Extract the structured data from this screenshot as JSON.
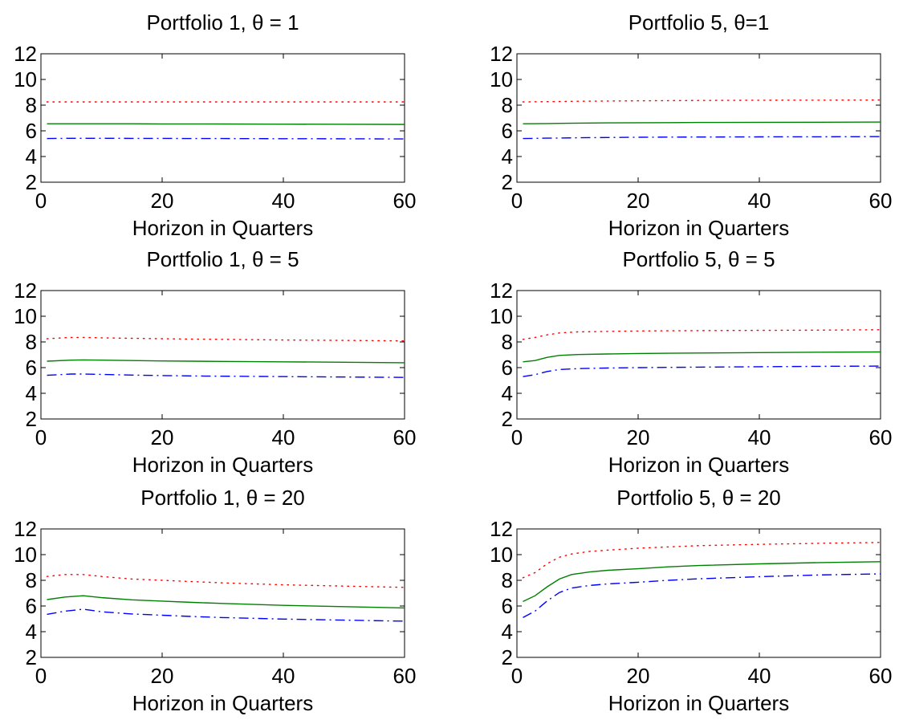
{
  "chart_data": [
    {
      "type": "line",
      "title": "Portfolio 1, θ = 1",
      "xlabel": "Horizon in Quarters",
      "ylabel": "",
      "xlim": [
        0,
        60
      ],
      "ylim": [
        2,
        12
      ],
      "xticks": [
        "0",
        "20",
        "40",
        "60"
      ],
      "yticks": [
        "2",
        "4",
        "6",
        "8",
        "10",
        "12"
      ],
      "grid": false,
      "x": [
        1,
        5,
        7,
        10,
        15,
        20,
        25,
        30,
        40,
        50,
        60
      ],
      "series": [
        {
          "style": "dotted",
          "color": "#ff0000",
          "values": [
            8.25,
            8.25,
            8.25,
            8.25,
            8.25,
            8.25,
            8.25,
            8.25,
            8.25,
            8.25,
            8.25
          ]
        },
        {
          "style": "solid",
          "color": "#008000",
          "values": [
            6.55,
            6.55,
            6.55,
            6.55,
            6.55,
            6.54,
            6.54,
            6.53,
            6.52,
            6.51,
            6.5
          ]
        },
        {
          "style": "dashdot",
          "color": "#0000ff",
          "values": [
            5.4,
            5.42,
            5.42,
            5.42,
            5.41,
            5.41,
            5.4,
            5.4,
            5.39,
            5.38,
            5.37
          ]
        }
      ]
    },
    {
      "type": "line",
      "title": "Portfolio 5, θ=1",
      "xlabel": "Horizon in Quarters",
      "ylabel": "",
      "xlim": [
        0,
        60
      ],
      "ylim": [
        2,
        12
      ],
      "xticks": [
        "0",
        "20",
        "40",
        "60"
      ],
      "yticks": [
        "2",
        "4",
        "6",
        "8",
        "10",
        "12"
      ],
      "grid": false,
      "x": [
        1,
        5,
        7,
        10,
        15,
        20,
        25,
        30,
        40,
        50,
        60
      ],
      "series": [
        {
          "style": "dotted",
          "color": "#ff0000",
          "values": [
            8.25,
            8.27,
            8.28,
            8.3,
            8.32,
            8.34,
            8.35,
            8.36,
            8.38,
            8.39,
            8.4
          ]
        },
        {
          "style": "solid",
          "color": "#008000",
          "values": [
            6.55,
            6.57,
            6.58,
            6.6,
            6.62,
            6.63,
            6.64,
            6.65,
            6.66,
            6.67,
            6.68
          ]
        },
        {
          "style": "dashdot",
          "color": "#0000ff",
          "values": [
            5.4,
            5.43,
            5.44,
            5.46,
            5.48,
            5.5,
            5.51,
            5.52,
            5.53,
            5.54,
            5.55
          ]
        }
      ]
    },
    {
      "type": "line",
      "title": "Portfolio 1, θ = 5",
      "xlabel": "Horizon in Quarters",
      "ylabel": "",
      "xlim": [
        0,
        60
      ],
      "ylim": [
        2,
        12
      ],
      "xticks": [
        "0",
        "20",
        "40",
        "60"
      ],
      "yticks": [
        "2",
        "4",
        "6",
        "8",
        "10",
        "12"
      ],
      "grid": false,
      "x": [
        1,
        5,
        7,
        10,
        15,
        20,
        25,
        30,
        40,
        50,
        60
      ],
      "series": [
        {
          "style": "dotted",
          "color": "#ff0000",
          "values": [
            8.25,
            8.35,
            8.35,
            8.32,
            8.28,
            8.25,
            8.22,
            8.2,
            8.15,
            8.12,
            8.08
          ]
        },
        {
          "style": "solid",
          "color": "#008000",
          "values": [
            6.5,
            6.58,
            6.6,
            6.58,
            6.55,
            6.52,
            6.5,
            6.48,
            6.45,
            6.42,
            6.38
          ]
        },
        {
          "style": "dashdot",
          "color": "#0000ff",
          "values": [
            5.4,
            5.5,
            5.5,
            5.47,
            5.42,
            5.38,
            5.35,
            5.33,
            5.3,
            5.27,
            5.24
          ]
        }
      ]
    },
    {
      "type": "line",
      "title": "Portfolio 5, θ = 5",
      "xlabel": "Horizon in Quarters",
      "ylabel": "",
      "xlim": [
        0,
        60
      ],
      "ylim": [
        2,
        12
      ],
      "xticks": [
        "0",
        "20",
        "40",
        "60"
      ],
      "yticks": [
        "2",
        "4",
        "6",
        "8",
        "10",
        "12"
      ],
      "grid": false,
      "x": [
        1,
        3,
        5,
        7,
        10,
        15,
        20,
        25,
        30,
        40,
        50,
        60
      ],
      "series": [
        {
          "style": "dotted",
          "color": "#ff0000",
          "values": [
            8.2,
            8.35,
            8.55,
            8.7,
            8.78,
            8.82,
            8.85,
            8.87,
            8.88,
            8.9,
            8.92,
            8.95
          ]
        },
        {
          "style": "solid",
          "color": "#008000",
          "values": [
            6.45,
            6.55,
            6.8,
            6.95,
            7.02,
            7.06,
            7.1,
            7.12,
            7.14,
            7.17,
            7.2,
            7.22
          ]
        },
        {
          "style": "dashdot",
          "color": "#0000ff",
          "values": [
            5.3,
            5.45,
            5.7,
            5.85,
            5.92,
            5.97,
            6.0,
            6.02,
            6.04,
            6.07,
            6.1,
            6.12
          ]
        }
      ]
    },
    {
      "type": "line",
      "title": "Portfolio 1, θ = 20",
      "xlabel": "Horizon in Quarters",
      "ylabel": "",
      "xlim": [
        0,
        60
      ],
      "ylim": [
        2,
        12
      ],
      "xticks": [
        "0",
        "20",
        "40",
        "60"
      ],
      "yticks": [
        "2",
        "4",
        "6",
        "8",
        "10",
        "12"
      ],
      "grid": false,
      "x": [
        1,
        4,
        7,
        10,
        15,
        20,
        25,
        30,
        40,
        50,
        60
      ],
      "series": [
        {
          "style": "dotted",
          "color": "#ff0000",
          "values": [
            8.3,
            8.45,
            8.45,
            8.3,
            8.1,
            8.0,
            7.9,
            7.8,
            7.65,
            7.55,
            7.45
          ]
        },
        {
          "style": "solid",
          "color": "#008000",
          "values": [
            6.5,
            6.7,
            6.8,
            6.65,
            6.48,
            6.38,
            6.28,
            6.2,
            6.05,
            5.95,
            5.85
          ]
        },
        {
          "style": "dashdot",
          "color": "#0000ff",
          "values": [
            5.35,
            5.6,
            5.75,
            5.55,
            5.38,
            5.28,
            5.18,
            5.1,
            4.98,
            4.9,
            4.82
          ]
        }
      ]
    },
    {
      "type": "line",
      "title": "Portfolio 5, θ = 20",
      "xlabel": "Horizon in Quarters",
      "ylabel": "",
      "xlim": [
        0,
        60
      ],
      "ylim": [
        2,
        12
      ],
      "xticks": [
        "0",
        "20",
        "40",
        "60"
      ],
      "yticks": [
        "2",
        "4",
        "6",
        "8",
        "10",
        "12"
      ],
      "grid": false,
      "x": [
        1,
        3,
        5,
        7,
        9,
        12,
        15,
        20,
        25,
        30,
        40,
        50,
        60
      ],
      "series": [
        {
          "style": "dotted",
          "color": "#ff0000",
          "values": [
            8.2,
            8.6,
            9.3,
            9.8,
            10.05,
            10.25,
            10.35,
            10.5,
            10.6,
            10.7,
            10.8,
            10.88,
            10.95
          ]
        },
        {
          "style": "solid",
          "color": "#008000",
          "values": [
            6.35,
            6.8,
            7.5,
            8.1,
            8.45,
            8.65,
            8.78,
            8.9,
            9.05,
            9.15,
            9.28,
            9.38,
            9.45
          ]
        },
        {
          "style": "dashdot",
          "color": "#0000ff",
          "values": [
            5.1,
            5.6,
            6.4,
            7.05,
            7.4,
            7.6,
            7.72,
            7.85,
            8.0,
            8.12,
            8.28,
            8.42,
            8.5
          ]
        }
      ]
    }
  ]
}
